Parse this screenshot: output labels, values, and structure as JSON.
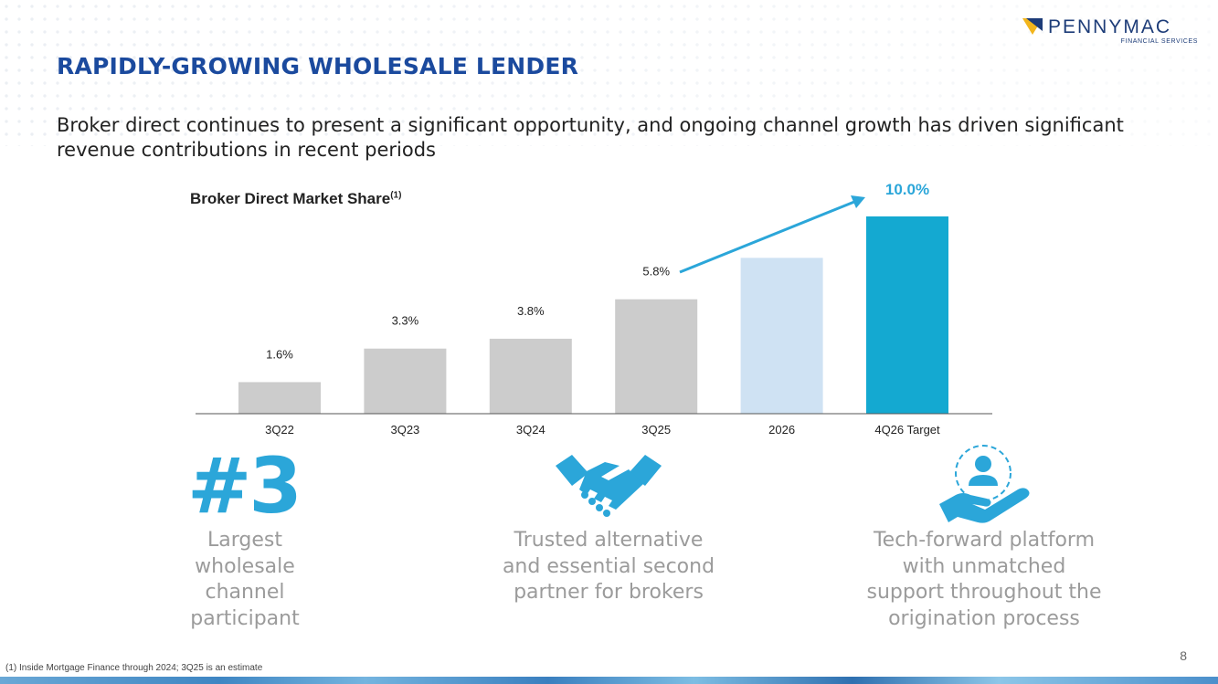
{
  "header": {
    "title": "RAPIDLY-GROWING WHOLESALE LENDER",
    "subtitle": "Broker direct continues to present a significant opportunity, and ongoing channel growth has driven significant revenue contributions in recent periods"
  },
  "logo": {
    "name": "PENNYMAC",
    "sub": "FINANCIAL SERVICES"
  },
  "chart_data": {
    "type": "bar",
    "title": "Broker Direct Market Share",
    "title_superscript": "(1)",
    "categories": [
      "3Q22",
      "3Q23",
      "3Q24",
      "3Q25",
      "2026",
      "4Q26 Target"
    ],
    "values": [
      1.6,
      3.3,
      3.8,
      5.8,
      7.9,
      10.0
    ],
    "data_labels": [
      "1.6%",
      "3.3%",
      "3.8%",
      "5.8%",
      "",
      "10.0%"
    ],
    "bar_colors": [
      "#cccccc",
      "#cccccc",
      "#cccccc",
      "#cccccc",
      "#cfe2f3",
      "#14a9d1"
    ],
    "target_label_color": "#2ba6d9",
    "arrow_color": "#2ba6d9",
    "ylim": [
      0,
      10
    ],
    "xlabel": "",
    "ylabel": "",
    "grid": false
  },
  "features": {
    "rank": "#3",
    "items": [
      {
        "icon": "rank-icon",
        "text": "Largest wholesale channel participant"
      },
      {
        "icon": "handshake-icon",
        "text": "Trusted alternative and essential second partner for brokers"
      },
      {
        "icon": "person-hand-icon",
        "text": "Tech-forward platform with unmatched support throughout the origination process"
      }
    ]
  },
  "footer": {
    "footnote": "(1) Inside Mortgage Finance through 2024; 3Q25 is an estimate",
    "page_number": "8"
  },
  "colors": {
    "title_blue": "#1b4a9e",
    "accent_blue": "#2ba6d9",
    "feature_gray": "#9b9b9b"
  }
}
